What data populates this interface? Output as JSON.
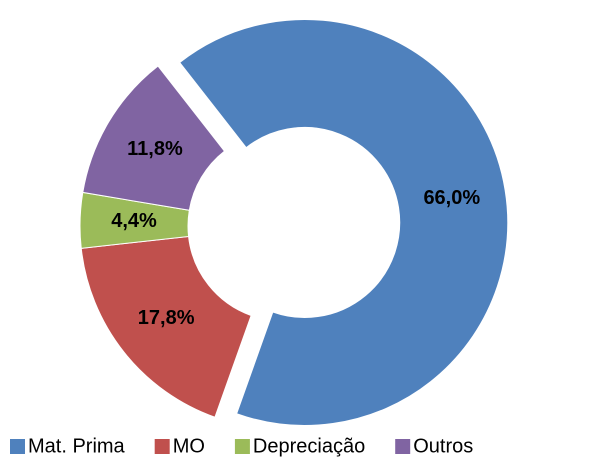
{
  "chart_data": {
    "type": "donut",
    "categories": [
      "Mat. Prima",
      "MO",
      "Depreciação",
      "Outros"
    ],
    "values": [
      66.0,
      17.8,
      4.4,
      11.8
    ],
    "value_labels": [
      "66,0%",
      "17,8%",
      "4,4%",
      "11,8%"
    ],
    "colors": [
      "#4f81bd",
      "#c0504d",
      "#9bbb59",
      "#8064a2"
    ],
    "exploded": [
      true,
      false,
      false,
      false
    ],
    "legend": "bottom"
  }
}
